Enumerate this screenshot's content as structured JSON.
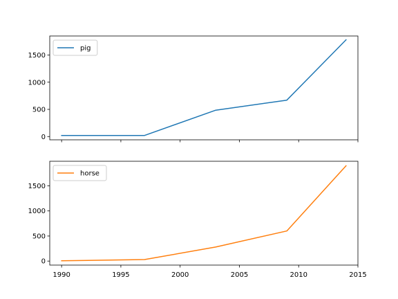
{
  "chart_data": [
    {
      "type": "line",
      "series": [
        {
          "name": "pig",
          "x": [
            1990,
            1997,
            2003,
            2009,
            2014
          ],
          "values": [
            20,
            20,
            485,
            670,
            1780
          ],
          "color": "#1f77b4"
        }
      ],
      "xlim": [
        1989,
        2015
      ],
      "ylim": [
        -60,
        1850
      ],
      "xticks": [
        1990,
        1995,
        2000,
        2005,
        2010,
        2015
      ],
      "yticks": [
        0,
        500,
        1000,
        1500
      ],
      "x_tick_labels_shown": false,
      "legend": "upper left"
    },
    {
      "type": "line",
      "series": [
        {
          "name": "horse",
          "x": [
            1990,
            1997,
            2003,
            2009,
            2014
          ],
          "values": [
            5,
            30,
            280,
            600,
            1900
          ],
          "color": "#ff7f0e"
        }
      ],
      "xlim": [
        1989,
        2015
      ],
      "ylim": [
        -80,
        1990
      ],
      "xticks": [
        1990,
        1995,
        2000,
        2005,
        2010,
        2015
      ],
      "yticks": [
        0,
        500,
        1000,
        1500
      ],
      "x_tick_labels_shown": true,
      "legend": "upper left"
    }
  ]
}
